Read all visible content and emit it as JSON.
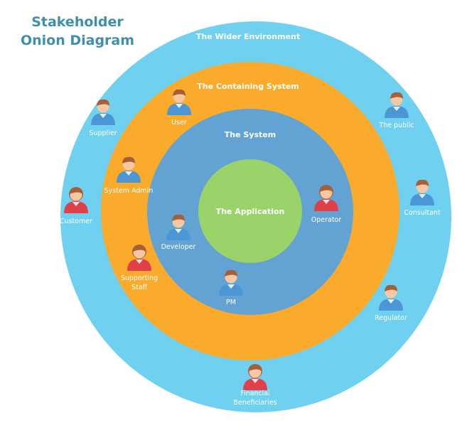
{
  "title": {
    "line1": "Stakeholder",
    "line2": "Onion Diagram"
  },
  "rings": {
    "wider": {
      "label": "The Wider Environment",
      "color": "#6fd0f0"
    },
    "containing": {
      "label": "The Containing System",
      "color": "#fbab2c"
    },
    "system": {
      "label": "The System",
      "color": "#62a3d4"
    },
    "application": {
      "label": "The Application",
      "color": "#99d36a"
    }
  },
  "stakeholders": [
    {
      "id": "user",
      "name": "User",
      "type": "blue-person-icon"
    },
    {
      "id": "supplier",
      "name": "Supplier",
      "type": "blue-person-icon"
    },
    {
      "id": "the-public",
      "name": "The public",
      "type": "blue-person-icon"
    },
    {
      "id": "system-admin",
      "name": "System Admin",
      "type": "blue-person-icon"
    },
    {
      "id": "customer",
      "name": "Customer",
      "type": "red-person-icon"
    },
    {
      "id": "operator",
      "name": "Operator",
      "type": "red-person-icon"
    },
    {
      "id": "consultant",
      "name": "Consultant",
      "type": "blue-person-icon"
    },
    {
      "id": "developer",
      "name": "Developer",
      "type": "blue-person-icon"
    },
    {
      "id": "supporting-staff",
      "name": [
        "Supporting",
        "Staff"
      ],
      "type": "red-person-icon"
    },
    {
      "id": "pm",
      "name": "PM",
      "type": "blue-person-icon"
    },
    {
      "id": "regulator",
      "name": "Regulator",
      "type": "blue-person-icon"
    },
    {
      "id": "financial-beneficiaries",
      "name": [
        "Financial",
        "Beneficiaries"
      ],
      "type": "red-person-icon"
    }
  ],
  "colors": {
    "title": "#3e8fae",
    "person_blue": "#4b97d6",
    "person_red": "#e0404a",
    "skin": "#f5c8a2",
    "hair_brown": "#a5603a"
  }
}
